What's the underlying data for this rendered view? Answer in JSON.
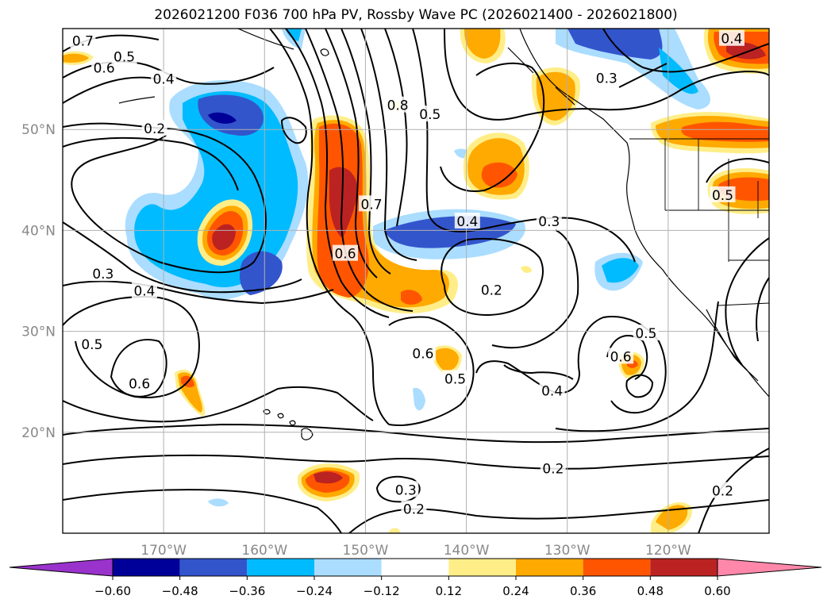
{
  "title": "2026021200 F036 700 hPa PV, Rossby Wave PC (2026021400 - 2026021800)",
  "map": {
    "lon_range": [
      -180,
      -110
    ],
    "lat_range": [
      10,
      60
    ],
    "lon_gridlines": [
      -170,
      -160,
      -150,
      -140,
      -130,
      -120
    ],
    "lat_gridlines": [
      20,
      30,
      40,
      50
    ],
    "lon_tick_labels": [
      "170°W",
      "160°W",
      "150°W",
      "140°W",
      "130°W",
      "120°W"
    ],
    "lat_tick_labels": [
      "20°N",
      "30°N",
      "40°N",
      "50°N"
    ],
    "tick_label_color": "#888888",
    "grid_color": "#b0b0b0",
    "contour_color": "#000000"
  },
  "contour_labels": [
    {
      "text": "0.7",
      "lon": -178.0,
      "lat": 58.8
    },
    {
      "text": "0.6",
      "lon": -175.9,
      "lat": 56.1
    },
    {
      "text": "0.5",
      "lon": -173.9,
      "lat": 57.2
    },
    {
      "text": "0.4",
      "lon": -170.0,
      "lat": 55.0
    },
    {
      "text": "0.2",
      "lon": -170.9,
      "lat": 50.1
    },
    {
      "text": "0.3",
      "lon": -176.0,
      "lat": 35.7
    },
    {
      "text": "0.4",
      "lon": -171.9,
      "lat": 34.0
    },
    {
      "text": "0.5",
      "lon": -177.1,
      "lat": 28.7
    },
    {
      "text": "0.6",
      "lon": -172.4,
      "lat": 24.8
    },
    {
      "text": "0.8",
      "lon": -146.8,
      "lat": 52.4
    },
    {
      "text": "0.5",
      "lon": -143.6,
      "lat": 51.5
    },
    {
      "text": "0.7",
      "lon": -149.4,
      "lat": 42.6
    },
    {
      "text": "0.6",
      "lon": -152.0,
      "lat": 37.7
    },
    {
      "text": "0.4",
      "lon": -139.9,
      "lat": 40.9
    },
    {
      "text": "0.3",
      "lon": -131.8,
      "lat": 40.9
    },
    {
      "text": "0.2",
      "lon": -137.5,
      "lat": 34.1
    },
    {
      "text": "0.6",
      "lon": -144.3,
      "lat": 27.8
    },
    {
      "text": "0.5",
      "lon": -141.1,
      "lat": 25.3
    },
    {
      "text": "0.4",
      "lon": -131.5,
      "lat": 24.1
    },
    {
      "text": "0.3",
      "lon": -126.1,
      "lat": 55.1
    },
    {
      "text": "0.4",
      "lon": -113.7,
      "lat": 59.0
    },
    {
      "text": "0.5",
      "lon": -114.6,
      "lat": 43.5
    },
    {
      "text": "0.5",
      "lon": -122.2,
      "lat": 29.8
    },
    {
      "text": "0.6",
      "lon": -124.7,
      "lat": 27.5
    },
    {
      "text": "0.2",
      "lon": -131.4,
      "lat": 16.4
    },
    {
      "text": "0.3",
      "lon": -146.0,
      "lat": 14.3
    },
    {
      "text": "0.2",
      "lon": -145.2,
      "lat": 12.4
    },
    {
      "text": "0.2",
      "lon": -114.6,
      "lat": 14.2
    }
  ],
  "colorbar": {
    "levels": [
      -0.6,
      -0.48,
      -0.36,
      -0.24,
      -0.12,
      0.12,
      0.24,
      0.36,
      0.48,
      0.6
    ],
    "tick_labels": [
      "−0.60",
      "−0.48",
      "−0.36",
      "−0.24",
      "−0.12",
      "0.12",
      "0.24",
      "0.36",
      "0.48",
      "0.60"
    ],
    "under_color": "#9933cc",
    "over_color": "#ff88aa",
    "colors": [
      "#000099",
      "#3355cc",
      "#00bbff",
      "#aaddff",
      "#ffffff",
      "#ffee88",
      "#ffaa00",
      "#ff5500",
      "#bb2222"
    ]
  }
}
